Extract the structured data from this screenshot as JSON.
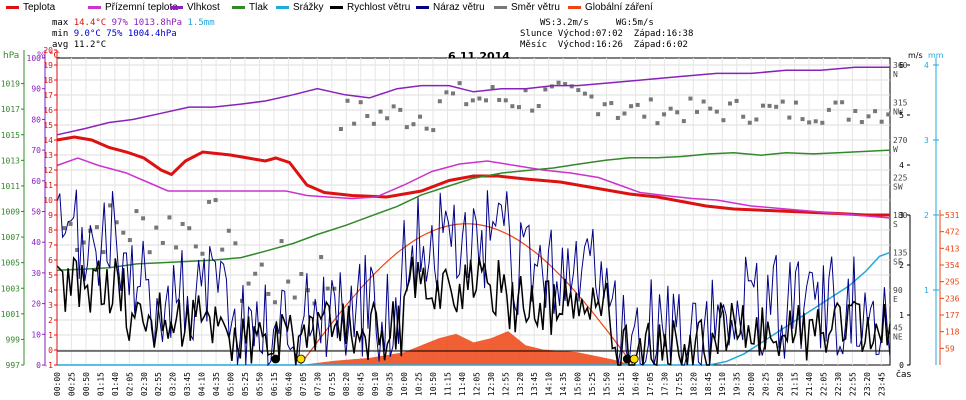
{
  "legend": [
    {
      "label": "Teplota",
      "color": "#dd1111"
    },
    {
      "label": "Přízemní teplota",
      "color": "#cc33cc"
    },
    {
      "label": "Vlhkost",
      "color": "#8822bb"
    },
    {
      "label": "Tlak",
      "color": "#33882a"
    },
    {
      "label": "Srážky",
      "color": "#22aadd"
    },
    {
      "label": "Rychlost větru",
      "color": "#000000"
    },
    {
      "label": "Náraz větru",
      "color": "#000088"
    },
    {
      "label": "Směr větru",
      "color": "#777777"
    },
    {
      "label": "Globální záření",
      "color": "#ee4411"
    }
  ],
  "stats": {
    "max": {
      "label": "max",
      "temp": "14.4°C",
      "hum": "97%",
      "press": "1013.8hPa",
      "rain": "1.5mm"
    },
    "min": {
      "label": "min",
      "temp": "9.0°C",
      "hum": "75%",
      "press": "1004.4hPa"
    },
    "avg": {
      "label": "avg",
      "temp": "11.2°C"
    }
  },
  "sun_info": {
    "line1": "WS:3.2m/s     WG:5m/s",
    "line2": "Slunce Východ:07:02  Západ:16:38",
    "line3": "Měsíc  Východ:16:26  Západ:6:02"
  },
  "date": "6.11.2014",
  "axis_units": {
    "hpa": "hPa",
    "pct": "%",
    "degc": "°C",
    "ms": "m/s",
    "mm": "mm",
    "wm2": "W/m2",
    "time": "čas"
  },
  "chart_data": {
    "type": "line",
    "title": "6.11.2014",
    "xlabel": "čas",
    "x_range_hours": [
      0,
      24
    ],
    "x_ticks": [
      "00:00",
      "00:25",
      "00:50",
      "01:15",
      "01:40",
      "02:05",
      "02:30",
      "02:55",
      "03:20",
      "03:45",
      "04:10",
      "04:35",
      "05:00",
      "05:25",
      "05:50",
      "06:15",
      "06:40",
      "07:05",
      "07:30",
      "07:55",
      "08:20",
      "08:45",
      "09:10",
      "09:35",
      "10:00",
      "10:25",
      "10:50",
      "11:15",
      "11:40",
      "12:05",
      "12:30",
      "12:55",
      "13:20",
      "13:45",
      "14:10",
      "14:35",
      "15:00",
      "15:25",
      "15:50",
      "16:15",
      "16:40",
      "17:05",
      "17:30",
      "17:55",
      "18:20",
      "18:45",
      "19:10",
      "19:35",
      "20:00",
      "20:25",
      "20:50",
      "21:15",
      "21:40",
      "22:05",
      "22:30",
      "22:55",
      "23:20",
      "23:45"
    ],
    "axes": {
      "pressure_hPa": {
        "range": [
          997,
          1021
        ],
        "ticks": [
          "1019",
          "1017",
          "1015",
          "1013",
          "1011",
          "1009",
          "1007",
          "1005",
          "1003",
          "1001",
          "999",
          "997"
        ]
      },
      "humidity_pct": {
        "range": [
          0,
          100
        ],
        "ticks": [
          "100",
          "90",
          "80",
          "70",
          "60",
          "50",
          "40",
          "30",
          "20",
          "10",
          "0"
        ]
      },
      "temperature_C": {
        "range": [
          -1,
          20
        ],
        "ticks": [
          "20",
          "19",
          "18",
          "17",
          "16",
          "15",
          "14",
          "13",
          "12",
          "11",
          "10",
          "9",
          "8",
          "7",
          "6",
          "5",
          "4",
          "3",
          "2",
          "1",
          "0",
          "-1"
        ]
      },
      "wind_dir": {
        "ticks": [
          "360",
          "N",
          "315",
          "NW",
          "270",
          "W",
          "225",
          "SW",
          "180",
          "S",
          "135",
          "SE",
          "90",
          "E",
          "45",
          "NE"
        ]
      },
      "wind_ms": {
        "range": [
          0,
          6
        ],
        "ticks": [
          "6",
          "5",
          "4",
          "3",
          "2",
          "1",
          "0"
        ]
      },
      "rain_mm": {
        "range": [
          0,
          4
        ],
        "ticks": [
          "4",
          "3",
          "2",
          "1"
        ]
      },
      "radiation_wm2": {
        "range": [
          0,
          600
        ],
        "ticks": [
          "531",
          "472",
          "413",
          "354",
          "295",
          "236",
          "177",
          "118",
          "59"
        ]
      }
    },
    "series": [
      {
        "name": "Teplota",
        "axis": "temperature_C",
        "color": "#dd1111",
        "x": [
          0,
          0.5,
          1,
          1.5,
          2,
          2.5,
          3,
          3.3,
          3.7,
          4.2,
          5,
          5.5,
          6,
          6.3,
          6.7,
          7.2,
          7.7,
          8.5,
          9.5,
          10.5,
          11.3,
          12,
          12.7,
          13.5,
          14.5,
          15.5,
          16.5,
          17.3,
          18,
          18.7,
          19.5,
          20.5,
          21.5,
          22.5,
          23.3,
          24
        ],
        "values": [
          14.0,
          14.2,
          14.0,
          13.5,
          13.2,
          12.8,
          12.0,
          11.7,
          12.6,
          13.2,
          13.0,
          12.8,
          12.6,
          12.8,
          12.5,
          11.0,
          10.5,
          10.3,
          10.2,
          10.6,
          11.3,
          11.6,
          11.6,
          11.4,
          11.2,
          10.8,
          10.4,
          10.2,
          9.9,
          9.6,
          9.4,
          9.3,
          9.2,
          9.1,
          9.0,
          9.0
        ]
      },
      {
        "name": "Přízemní teplota",
        "axis": "temperature_C",
        "color": "#cc33cc",
        "x": [
          0,
          0.6,
          1.2,
          2,
          2.6,
          3.2,
          3.8,
          4.5,
          5.2,
          6,
          6.6,
          7.2,
          7.8,
          8.5,
          9.2,
          10,
          10.8,
          11.6,
          12.4,
          13.2,
          14,
          14.8,
          15.6,
          16.2,
          16.8,
          17.5,
          18.3,
          19,
          20,
          21,
          22,
          23,
          24
        ],
        "values": [
          12.3,
          12.8,
          12.3,
          11.8,
          11.2,
          10.6,
          10.6,
          10.6,
          10.6,
          10.6,
          10.6,
          10.3,
          10.2,
          10.1,
          10.2,
          11.0,
          11.9,
          12.4,
          12.6,
          12.3,
          12.0,
          11.8,
          11.5,
          11.0,
          10.5,
          10.3,
          10.1,
          10.0,
          9.6,
          9.4,
          9.2,
          9.0,
          8.8
        ]
      },
      {
        "name": "Vlhkost",
        "axis": "humidity_pct",
        "color": "#8822bb",
        "x": [
          0,
          0.8,
          1.5,
          2.2,
          3,
          3.8,
          4.5,
          5.3,
          6,
          6.8,
          7.5,
          8.3,
          9,
          9.8,
          10.5,
          11.3,
          12,
          12.8,
          13.5,
          14.3,
          15,
          16,
          17,
          18,
          19,
          20,
          21,
          22,
          23,
          24
        ],
        "values": [
          75,
          77,
          79,
          80,
          82,
          84,
          84,
          85,
          86,
          88,
          90,
          88,
          87,
          90,
          91,
          91,
          89,
          90,
          90,
          91,
          91,
          92,
          93,
          94,
          95,
          95,
          96,
          96,
          97,
          97
        ]
      },
      {
        "name": "Tlak",
        "axis": "pressure_hPa",
        "color": "#33882a",
        "x": [
          0,
          0.8,
          1.5,
          2.3,
          3,
          3.8,
          4.5,
          5.3,
          6,
          6.8,
          7.5,
          8.3,
          9,
          9.8,
          10.5,
          11.3,
          12,
          12.8,
          13.5,
          14.3,
          15,
          15.8,
          16.5,
          17.3,
          18,
          18.8,
          19.5,
          20.3,
          21,
          21.8,
          22.5,
          23.3,
          24
        ],
        "values": [
          1004.4,
          1004.5,
          1004.6,
          1004.9,
          1005.0,
          1005.1,
          1005.2,
          1005.4,
          1005.9,
          1006.5,
          1007.2,
          1007.9,
          1008.6,
          1009.4,
          1010.3,
          1011.0,
          1011.6,
          1012.0,
          1012.2,
          1012.4,
          1012.7,
          1013.0,
          1013.2,
          1013.2,
          1013.3,
          1013.5,
          1013.6,
          1013.4,
          1013.6,
          1013.5,
          1013.6,
          1013.7,
          1013.8
        ]
      },
      {
        "name": "Srážky",
        "axis": "rain_mm",
        "color": "#22aadd",
        "x": [
          0,
          18.8,
          19.3,
          19.8,
          20.3,
          20.8,
          21.3,
          21.8,
          22.3,
          22.8,
          23.3,
          23.7,
          24
        ],
        "values": [
          0,
          0,
          0.05,
          0.15,
          0.3,
          0.45,
          0.6,
          0.75,
          0.9,
          1.05,
          1.25,
          1.45,
          1.5
        ]
      },
      {
        "name": "Globální záření",
        "axis": "radiation_wm2",
        "color": "#ee4411",
        "x": [
          7.0,
          8.0,
          9.0,
          10.0,
          10.5,
          11.0,
          11.5,
          12.0,
          12.5,
          13.0,
          13.5,
          14.0,
          15.0,
          16.0,
          16.6
        ],
        "values": [
          0,
          15,
          25,
          45,
          70,
          95,
          110,
          80,
          95,
          120,
          70,
          55,
          45,
          20,
          0
        ]
      }
    ]
  }
}
